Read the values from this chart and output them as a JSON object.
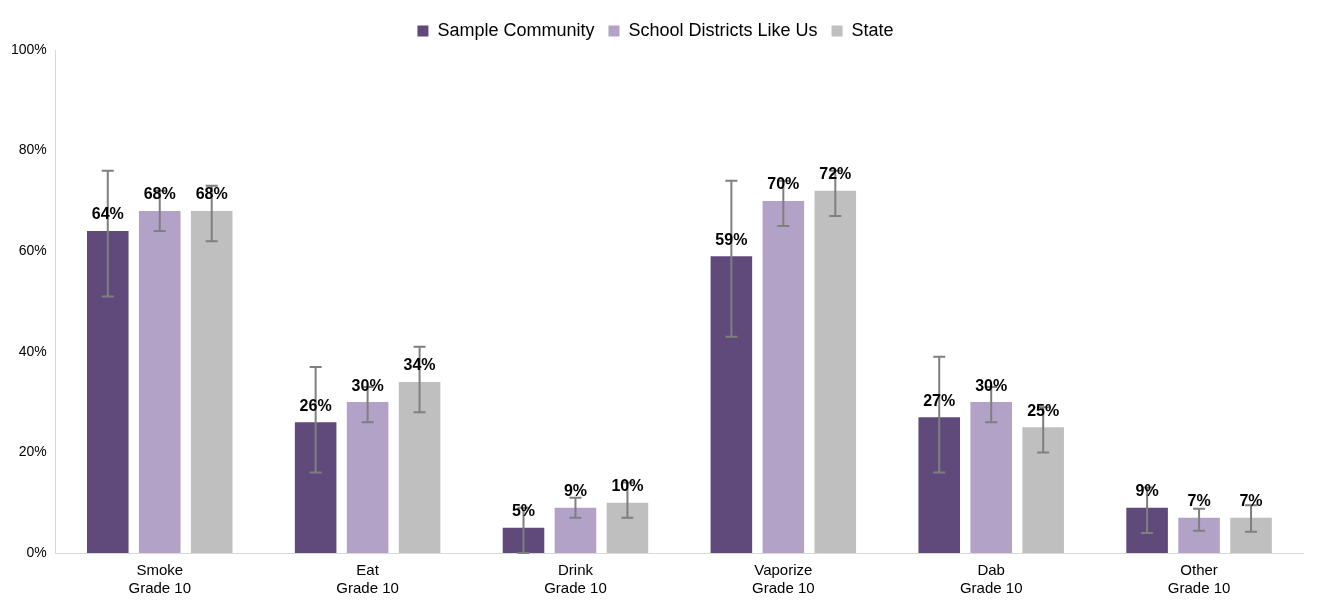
{
  "chart_data": {
    "type": "bar",
    "categories": [
      "Smoke\nGrade 10",
      "Eat\nGrade 10",
      "Drink\nGrade 10",
      "Vaporize\nGrade 10",
      "Dab\nGrade 10",
      "Other\nGrade 10"
    ],
    "series": [
      {
        "name": "Sample Community",
        "color": "#604a7b",
        "values": [
          64,
          26,
          5,
          59,
          27,
          9
        ],
        "value_labels": [
          "64%",
          "26%",
          "5%",
          "59%",
          "27%",
          "9%"
        ],
        "errors": [
          [
            51,
            76
          ],
          [
            16,
            37
          ],
          [
            0,
            9
          ],
          [
            43,
            74
          ],
          [
            16,
            39
          ],
          [
            4,
            13
          ]
        ]
      },
      {
        "name": "School Districts Like Us",
        "color": "#b3a2c7",
        "values": [
          68,
          30,
          9,
          70,
          30,
          7
        ],
        "value_labels": [
          "68%",
          "30%",
          "9%",
          "70%",
          "30%",
          "7%"
        ],
        "errors": [
          [
            64,
            72
          ],
          [
            26,
            33
          ],
          [
            7,
            11
          ],
          [
            65,
            74
          ],
          [
            26,
            33
          ],
          [
            4.4,
            8.8
          ]
        ]
      },
      {
        "name": "State",
        "color": "#bfbfbf",
        "values": [
          68,
          34,
          10,
          72,
          25,
          7
        ],
        "value_labels": [
          "68%",
          "34%",
          "10%",
          "72%",
          "25%",
          "7%"
        ],
        "errors": [
          [
            62,
            73
          ],
          [
            28,
            41
          ],
          [
            7,
            14
          ],
          [
            67,
            76
          ],
          [
            20,
            29
          ],
          [
            4.2,
            9.5
          ]
        ]
      }
    ],
    "ylim": [
      0,
      100
    ],
    "yticks": [
      {
        "value": 0,
        "label": "0%"
      },
      {
        "value": 20,
        "label": "20%"
      },
      {
        "value": 40,
        "label": "40%"
      },
      {
        "value": 60,
        "label": "60%"
      },
      {
        "value": 80,
        "label": "80%"
      },
      {
        "value": 100,
        "label": "100%"
      }
    ],
    "grid": false,
    "legend": "top"
  }
}
